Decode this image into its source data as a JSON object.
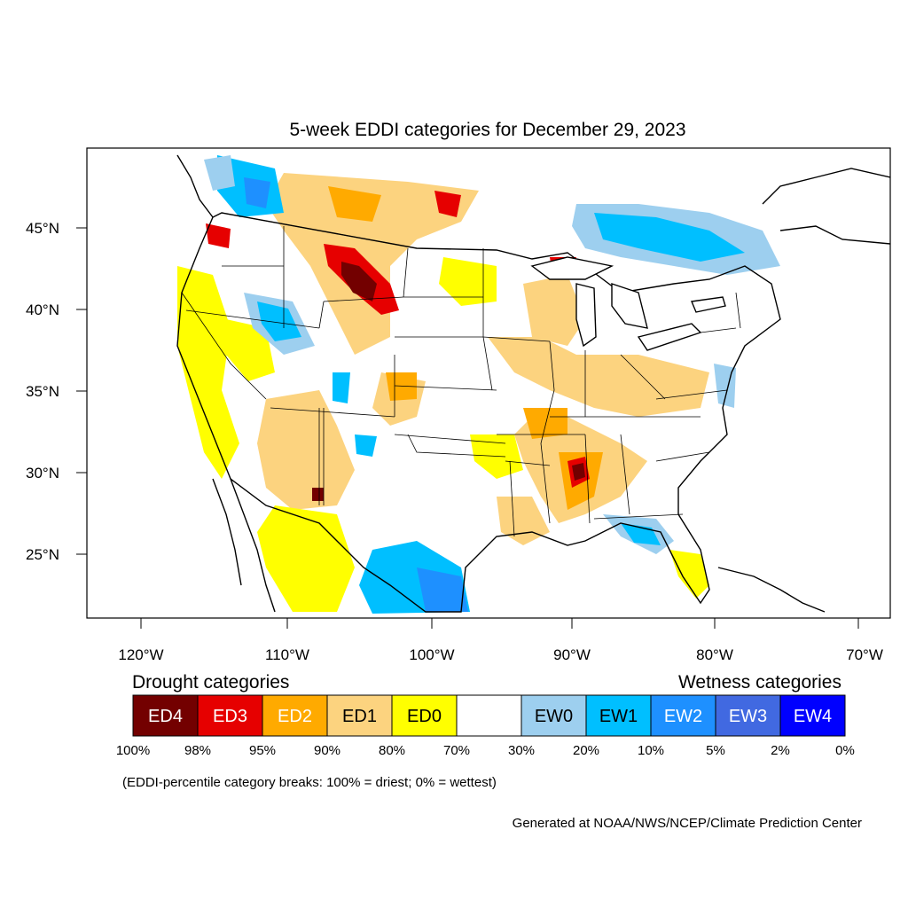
{
  "title": "5-week EDDI categories for December 29, 2023",
  "latitude_ticks": [
    "45°N",
    "40°N",
    "35°N",
    "30°N",
    "25°N"
  ],
  "longitude_ticks": [
    "120°W",
    "110°W",
    "100°W",
    "90°W",
    "80°W",
    "70°W"
  ],
  "legend": {
    "drought_heading": "Drought categories",
    "wetness_heading": "Wetness categories",
    "bins": [
      {
        "label": "ED4",
        "color": "#730000",
        "text_color": "#ffffff"
      },
      {
        "label": "ED3",
        "color": "#e60000",
        "text_color": "#ffffff"
      },
      {
        "label": "ED2",
        "color": "#ffaa00",
        "text_color": "#ffffff"
      },
      {
        "label": "ED1",
        "color": "#fcd37f",
        "text_color": "#000000"
      },
      {
        "label": "ED0",
        "color": "#ffff00",
        "text_color": "#000000"
      },
      {
        "label": "",
        "color": "#ffffff",
        "text_color": "#000000"
      },
      {
        "label": "EW0",
        "color": "#9dcfef",
        "text_color": "#000000"
      },
      {
        "label": "EW1",
        "color": "#00bfff",
        "text_color": "#000000"
      },
      {
        "label": "EW2",
        "color": "#1e90ff",
        "text_color": "#ffffff"
      },
      {
        "label": "EW3",
        "color": "#4169e1",
        "text_color": "#ffffff"
      },
      {
        "label": "EW4",
        "color": "#0000ff",
        "text_color": "#ffffff"
      }
    ],
    "percent_breaks": [
      "100%",
      "98%",
      "95%",
      "90%",
      "80%",
      "70%",
      "30%",
      "20%",
      "10%",
      "5%",
      "2%",
      "0%"
    ]
  },
  "note": "(EDDI-percentile category breaks: 100% = driest; 0% = wettest)",
  "credit": "Generated at NOAA/NWS/NCEP/Climate Prediction Center"
}
